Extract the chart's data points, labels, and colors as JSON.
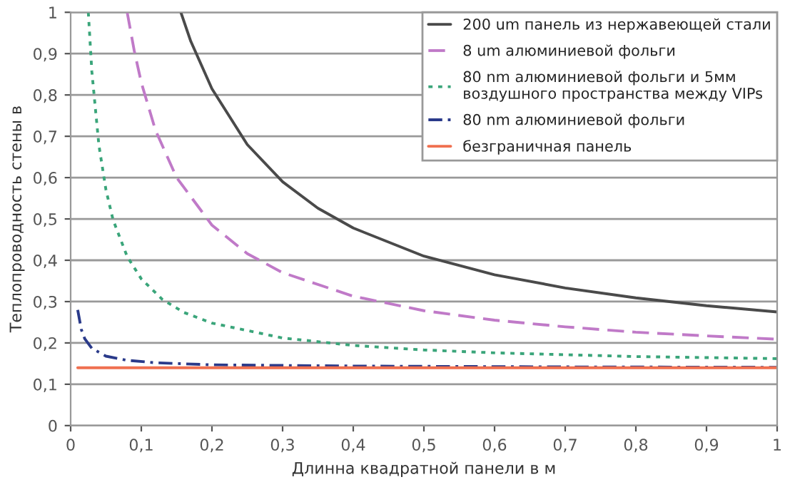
{
  "chart_data": {
    "type": "line",
    "xlabel": "Длинна квадратной панели в м",
    "ylabel": "Теплопроводность стены в",
    "xlim": [
      0,
      1
    ],
    "ylim": [
      0,
      1
    ],
    "xticks": [
      0,
      {
        "value": 0.1,
        "label": "0,1"
      },
      {
        "value": 0.2,
        "label": "0,2"
      },
      {
        "value": 0.3,
        "label": "0,3"
      },
      {
        "value": 0.4,
        "label": "0,4"
      },
      {
        "value": 0.5,
        "label": "0,5"
      },
      {
        "value": 0.6,
        "label": "0,6"
      },
      {
        "value": 0.7,
        "label": "0,7"
      },
      {
        "value": 0.8,
        "label": "0,8"
      },
      {
        "value": 0.9,
        "label": "0,9"
      },
      1
    ],
    "yticks": [
      0,
      {
        "value": 0.1,
        "label": "0,1"
      },
      {
        "value": 0.2,
        "label": "0,2"
      },
      {
        "value": 0.3,
        "label": "0,3"
      },
      {
        "value": 0.4,
        "label": "0,4"
      },
      {
        "value": 0.5,
        "label": "0,5"
      },
      {
        "value": 0.6,
        "label": "0,6"
      },
      {
        "value": 0.7,
        "label": "0,7"
      },
      {
        "value": 0.8,
        "label": "0,8"
      },
      {
        "value": 0.9,
        "label": "0,9"
      },
      1
    ],
    "grid": "y",
    "legend": "top right",
    "marker": "none",
    "series": [
      {
        "name": "200 um панель из нержавеющей стали",
        "color": "#4a4a4a",
        "line_style": "solid",
        "x": [
          0.156,
          0.17,
          0.2,
          0.25,
          0.3,
          0.35,
          0.4,
          0.5,
          0.6,
          0.7,
          0.8,
          0.9,
          1.0
        ],
        "values": [
          1.0,
          0.93,
          0.815,
          0.68,
          0.59,
          0.526,
          0.478,
          0.41,
          0.365,
          0.333,
          0.309,
          0.29,
          0.275
        ]
      },
      {
        "name": "8 um алюминиевой фольги",
        "color": "#c07ac8",
        "line_style": "dashed",
        "x": [
          0.08,
          0.09,
          0.1,
          0.12,
          0.15,
          0.2,
          0.25,
          0.3,
          0.4,
          0.5,
          0.6,
          0.7,
          0.8,
          0.9,
          1.0
        ],
        "values": [
          1.0,
          0.907,
          0.83,
          0.715,
          0.6,
          0.485,
          0.416,
          0.37,
          0.313,
          0.278,
          0.255,
          0.239,
          0.226,
          0.217,
          0.209
        ]
      },
      {
        "name": "80 nm алюминиевой фольги и 5мм\nвоздушного пространства между VIPs",
        "color": "#3aa57a",
        "line_style": "dotted",
        "x": [
          0.025,
          0.03,
          0.04,
          0.05,
          0.06,
          0.08,
          0.1,
          0.13,
          0.16,
          0.2,
          0.3,
          0.4,
          0.5,
          0.6,
          0.8,
          1.0
        ],
        "values": [
          1.0,
          0.857,
          0.678,
          0.57,
          0.498,
          0.409,
          0.355,
          0.305,
          0.274,
          0.248,
          0.212,
          0.194,
          0.183,
          0.176,
          0.167,
          0.162
        ]
      },
      {
        "name": "80 nm алюминиевой фольги",
        "color": "#2a3a8a",
        "line_style": "dashdot",
        "x": [
          0.01,
          0.015,
          0.02,
          0.03,
          0.05,
          0.08,
          0.12,
          0.2,
          0.4,
          0.7,
          1.0
        ],
        "values": [
          0.28,
          0.233,
          0.21,
          0.187,
          0.168,
          0.158,
          0.152,
          0.147,
          0.144,
          0.142,
          0.141
        ]
      },
      {
        "name": "безграничная панель",
        "color": "#f07050",
        "line_style": "solid",
        "x": [
          0.01,
          1.0
        ],
        "values": [
          0.14,
          0.14
        ]
      }
    ]
  }
}
